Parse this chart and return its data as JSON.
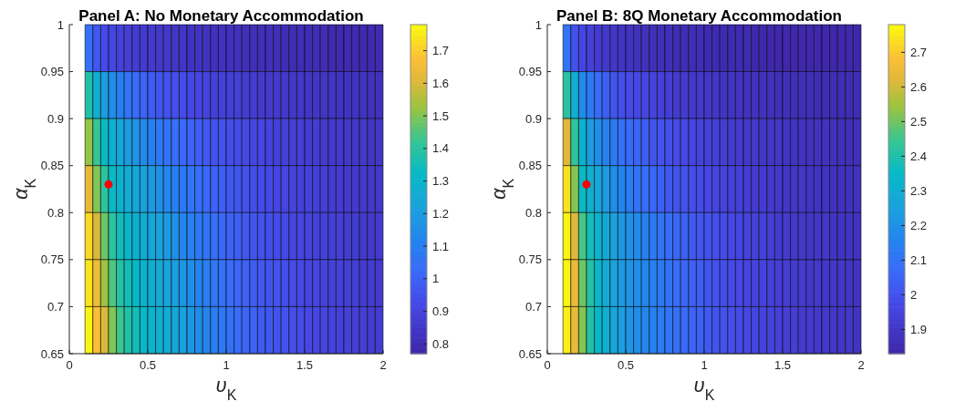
{
  "chart_data": [
    {
      "type": "heatmap",
      "title": "Panel A: No Monetary Accommodation",
      "xlabel": "υ$_{K}$",
      "ylabel": "α$_{K}$",
      "xlim": [
        0,
        2
      ],
      "xticks": [
        0,
        0.5,
        1,
        1.5,
        2
      ],
      "ylim": [
        0.65,
        1
      ],
      "yticks": [
        0.65,
        0.7,
        0.75,
        0.8,
        0.85,
        0.9,
        0.95,
        1
      ],
      "clim": [
        0.77,
        1.78
      ],
      "cticks": [
        0.8,
        0.9,
        1,
        1.1,
        1.2,
        1.3,
        1.4,
        1.5,
        1.6,
        1.7
      ],
      "marker": "circle",
      "x": [
        0.125,
        0.175,
        0.225,
        0.275,
        0.325,
        0.375,
        0.425,
        0.475,
        0.525,
        0.575,
        0.625,
        0.675,
        0.725,
        0.775,
        0.825,
        0.875,
        0.925,
        0.975,
        1.025,
        1.075,
        1.125,
        1.175,
        1.225,
        1.275,
        1.325,
        1.375,
        1.425,
        1.475,
        1.525,
        1.575,
        1.625,
        1.675,
        1.725,
        1.775,
        1.825,
        1.875,
        1.925,
        1.975
      ],
      "cells": [
        [
          1.05,
          0.97,
          0.93,
          0.91,
          0.89,
          0.88,
          0.87,
          0.86,
          0.86,
          0.85,
          0.85,
          0.84,
          0.84,
          0.83,
          0.83,
          0.83,
          0.82,
          0.82,
          0.82,
          0.82,
          0.81,
          0.81,
          0.81,
          0.81,
          0.81,
          0.8,
          0.8,
          0.8,
          0.8,
          0.8,
          0.8,
          0.79,
          0.79,
          0.79,
          0.79,
          0.79,
          0.79,
          0.79
        ],
        [
          1.38,
          1.28,
          1.2,
          1.15,
          1.1,
          1.06,
          1.03,
          1.0,
          0.98,
          0.96,
          0.95,
          0.94,
          0.93,
          0.92,
          0.91,
          0.9,
          0.89,
          0.89,
          0.88,
          0.88,
          0.87,
          0.87,
          0.86,
          0.86,
          0.86,
          0.85,
          0.85,
          0.85,
          0.84,
          0.84,
          0.84,
          0.84,
          0.83,
          0.83,
          0.83,
          0.83,
          0.82,
          0.82
        ],
        [
          1.52,
          1.42,
          1.33,
          1.28,
          1.24,
          1.2,
          1.17,
          1.14,
          1.11,
          1.08,
          1.06,
          1.04,
          1.02,
          1.0,
          0.99,
          0.97,
          0.96,
          0.95,
          0.94,
          0.93,
          0.92,
          0.91,
          0.91,
          0.9,
          0.89,
          0.89,
          0.88,
          0.88,
          0.87,
          0.87,
          0.86,
          0.86,
          0.86,
          0.85,
          0.85,
          0.85,
          0.84,
          0.84
        ],
        [
          1.62,
          1.5,
          1.4,
          1.33,
          1.29,
          1.26,
          1.24,
          1.22,
          1.19,
          1.16,
          1.13,
          1.1,
          1.08,
          1.06,
          1.04,
          1.02,
          1.0,
          0.99,
          0.97,
          0.96,
          0.95,
          0.94,
          0.93,
          0.92,
          0.91,
          0.91,
          0.9,
          0.89,
          0.89,
          0.88,
          0.88,
          0.87,
          0.87,
          0.86,
          0.86,
          0.86,
          0.85,
          0.85
        ],
        [
          1.72,
          1.6,
          1.48,
          1.4,
          1.35,
          1.31,
          1.28,
          1.26,
          1.24,
          1.22,
          1.19,
          1.16,
          1.13,
          1.1,
          1.08,
          1.06,
          1.04,
          1.02,
          1.0,
          0.99,
          0.97,
          0.96,
          0.95,
          0.94,
          0.93,
          0.92,
          0.91,
          0.91,
          0.9,
          0.89,
          0.89,
          0.88,
          0.88,
          0.87,
          0.87,
          0.86,
          0.86,
          0.86
        ],
        [
          1.74,
          1.64,
          1.53,
          1.45,
          1.39,
          1.35,
          1.32,
          1.29,
          1.27,
          1.25,
          1.23,
          1.21,
          1.18,
          1.15,
          1.12,
          1.1,
          1.07,
          1.05,
          1.03,
          1.01,
          1.0,
          0.98,
          0.97,
          0.96,
          0.95,
          0.94,
          0.93,
          0.92,
          0.91,
          0.91,
          0.9,
          0.89,
          0.89,
          0.88,
          0.88,
          0.87,
          0.87,
          0.86
        ],
        [
          1.77,
          1.67,
          1.6,
          1.5,
          1.43,
          1.38,
          1.35,
          1.32,
          1.3,
          1.28,
          1.26,
          1.24,
          1.21,
          1.18,
          1.15,
          1.12,
          1.1,
          1.07,
          1.05,
          1.03,
          1.01,
          1.0,
          0.98,
          0.97,
          0.96,
          0.95,
          0.94,
          0.93,
          0.92,
          0.91,
          0.91,
          0.9,
          0.89,
          0.89,
          0.88,
          0.88,
          0.87,
          0.87
        ]
      ],
      "series": [
        {
          "type": "scatter",
          "x": [
            0.25
          ],
          "values": [
            0.83
          ],
          "color": "#ff0000"
        }
      ]
    },
    {
      "type": "heatmap",
      "title": "Panel B: 8Q Monetary Accommodation",
      "xlabel": "υ$_{K}$",
      "ylabel": "α$_{K}$",
      "xlim": [
        0,
        2
      ],
      "xticks": [
        0,
        0.5,
        1,
        1.5,
        2
      ],
      "ylim": [
        0.65,
        1
      ],
      "yticks": [
        0.65,
        0.7,
        0.75,
        0.8,
        0.85,
        0.9,
        0.95,
        1
      ],
      "clim": [
        1.83,
        2.78
      ],
      "cticks": [
        1.9,
        2,
        2.1,
        2.2,
        2.3,
        2.4,
        2.5,
        2.6,
        2.7
      ],
      "marker": "circle",
      "x": [
        0.125,
        0.175,
        0.225,
        0.275,
        0.325,
        0.375,
        0.425,
        0.475,
        0.525,
        0.575,
        0.625,
        0.675,
        0.725,
        0.775,
        0.825,
        0.875,
        0.925,
        0.975,
        1.025,
        1.075,
        1.125,
        1.175,
        1.225,
        1.275,
        1.325,
        1.375,
        1.425,
        1.475,
        1.525,
        1.575,
        1.625,
        1.675,
        1.725,
        1.775,
        1.825,
        1.875,
        1.925,
        1.975
      ],
      "cells": [
        [
          2.1,
          2.0,
          1.96,
          1.94,
          1.92,
          1.91,
          1.9,
          1.89,
          1.89,
          1.88,
          1.88,
          1.87,
          1.87,
          1.87,
          1.86,
          1.86,
          1.86,
          1.86,
          1.85,
          1.85,
          1.85,
          1.85,
          1.85,
          1.85,
          1.84,
          1.84,
          1.84,
          1.84,
          1.84,
          1.84,
          1.84,
          1.84,
          1.84,
          1.84,
          1.84,
          1.84,
          1.84,
          1.84
        ],
        [
          2.42,
          2.3,
          2.18,
          2.12,
          2.07,
          2.04,
          2.01,
          1.99,
          1.98,
          1.97,
          1.96,
          1.95,
          1.94,
          1.93,
          1.92,
          1.92,
          1.91,
          1.91,
          1.9,
          1.9,
          1.89,
          1.89,
          1.89,
          1.88,
          1.88,
          1.88,
          1.88,
          1.87,
          1.87,
          1.87,
          1.87,
          1.87,
          1.86,
          1.86,
          1.86,
          1.86,
          1.86,
          1.86
        ],
        [
          2.62,
          2.43,
          2.32,
          2.24,
          2.19,
          2.15,
          2.12,
          2.09,
          2.07,
          2.05,
          2.03,
          2.01,
          2.0,
          1.99,
          1.98,
          1.97,
          1.96,
          1.95,
          1.94,
          1.94,
          1.93,
          1.92,
          1.92,
          1.91,
          1.91,
          1.9,
          1.9,
          1.9,
          1.89,
          1.89,
          1.89,
          1.88,
          1.88,
          1.88,
          1.88,
          1.87,
          1.87,
          1.87
        ],
        [
          2.74,
          2.52,
          2.36,
          2.31,
          2.27,
          2.23,
          2.19,
          2.16,
          2.13,
          2.1,
          2.08,
          2.06,
          2.04,
          2.02,
          2.01,
          2.0,
          1.99,
          1.98,
          1.97,
          1.96,
          1.95,
          1.94,
          1.94,
          1.93,
          1.92,
          1.92,
          1.91,
          1.91,
          1.9,
          1.9,
          1.9,
          1.89,
          1.89,
          1.89,
          1.88,
          1.88,
          1.88,
          1.88
        ],
        [
          2.77,
          2.62,
          2.46,
          2.38,
          2.32,
          2.28,
          2.25,
          2.22,
          2.2,
          2.18,
          2.15,
          2.12,
          2.1,
          2.08,
          2.06,
          2.04,
          2.02,
          2.01,
          2.0,
          1.99,
          1.98,
          1.97,
          1.96,
          1.95,
          1.94,
          1.94,
          1.93,
          1.92,
          1.92,
          1.91,
          1.91,
          1.9,
          1.9,
          1.9,
          1.89,
          1.89,
          1.89,
          1.88
        ],
        [
          2.77,
          2.64,
          2.5,
          2.41,
          2.34,
          2.29,
          2.26,
          2.23,
          2.21,
          2.19,
          2.17,
          2.14,
          2.12,
          2.1,
          2.08,
          2.06,
          2.04,
          2.03,
          2.01,
          2.0,
          1.99,
          1.98,
          1.97,
          1.96,
          1.95,
          1.95,
          1.94,
          1.93,
          1.93,
          1.92,
          1.92,
          1.91,
          1.91,
          1.9,
          1.9,
          1.9,
          1.89,
          1.89
        ],
        [
          2.76,
          2.64,
          2.52,
          2.41,
          2.35,
          2.3,
          2.27,
          2.24,
          2.21,
          2.19,
          2.17,
          2.15,
          2.13,
          2.11,
          2.09,
          2.07,
          2.05,
          2.04,
          2.02,
          2.01,
          2.0,
          1.99,
          1.98,
          1.97,
          1.96,
          1.95,
          1.95,
          1.94,
          1.93,
          1.93,
          1.92,
          1.92,
          1.91,
          1.91,
          1.9,
          1.9,
          1.9,
          1.89
        ]
      ],
      "series": [
        {
          "type": "scatter",
          "x": [
            0.25
          ],
          "values": [
            0.83
          ],
          "color": "#ff0000"
        }
      ]
    }
  ]
}
